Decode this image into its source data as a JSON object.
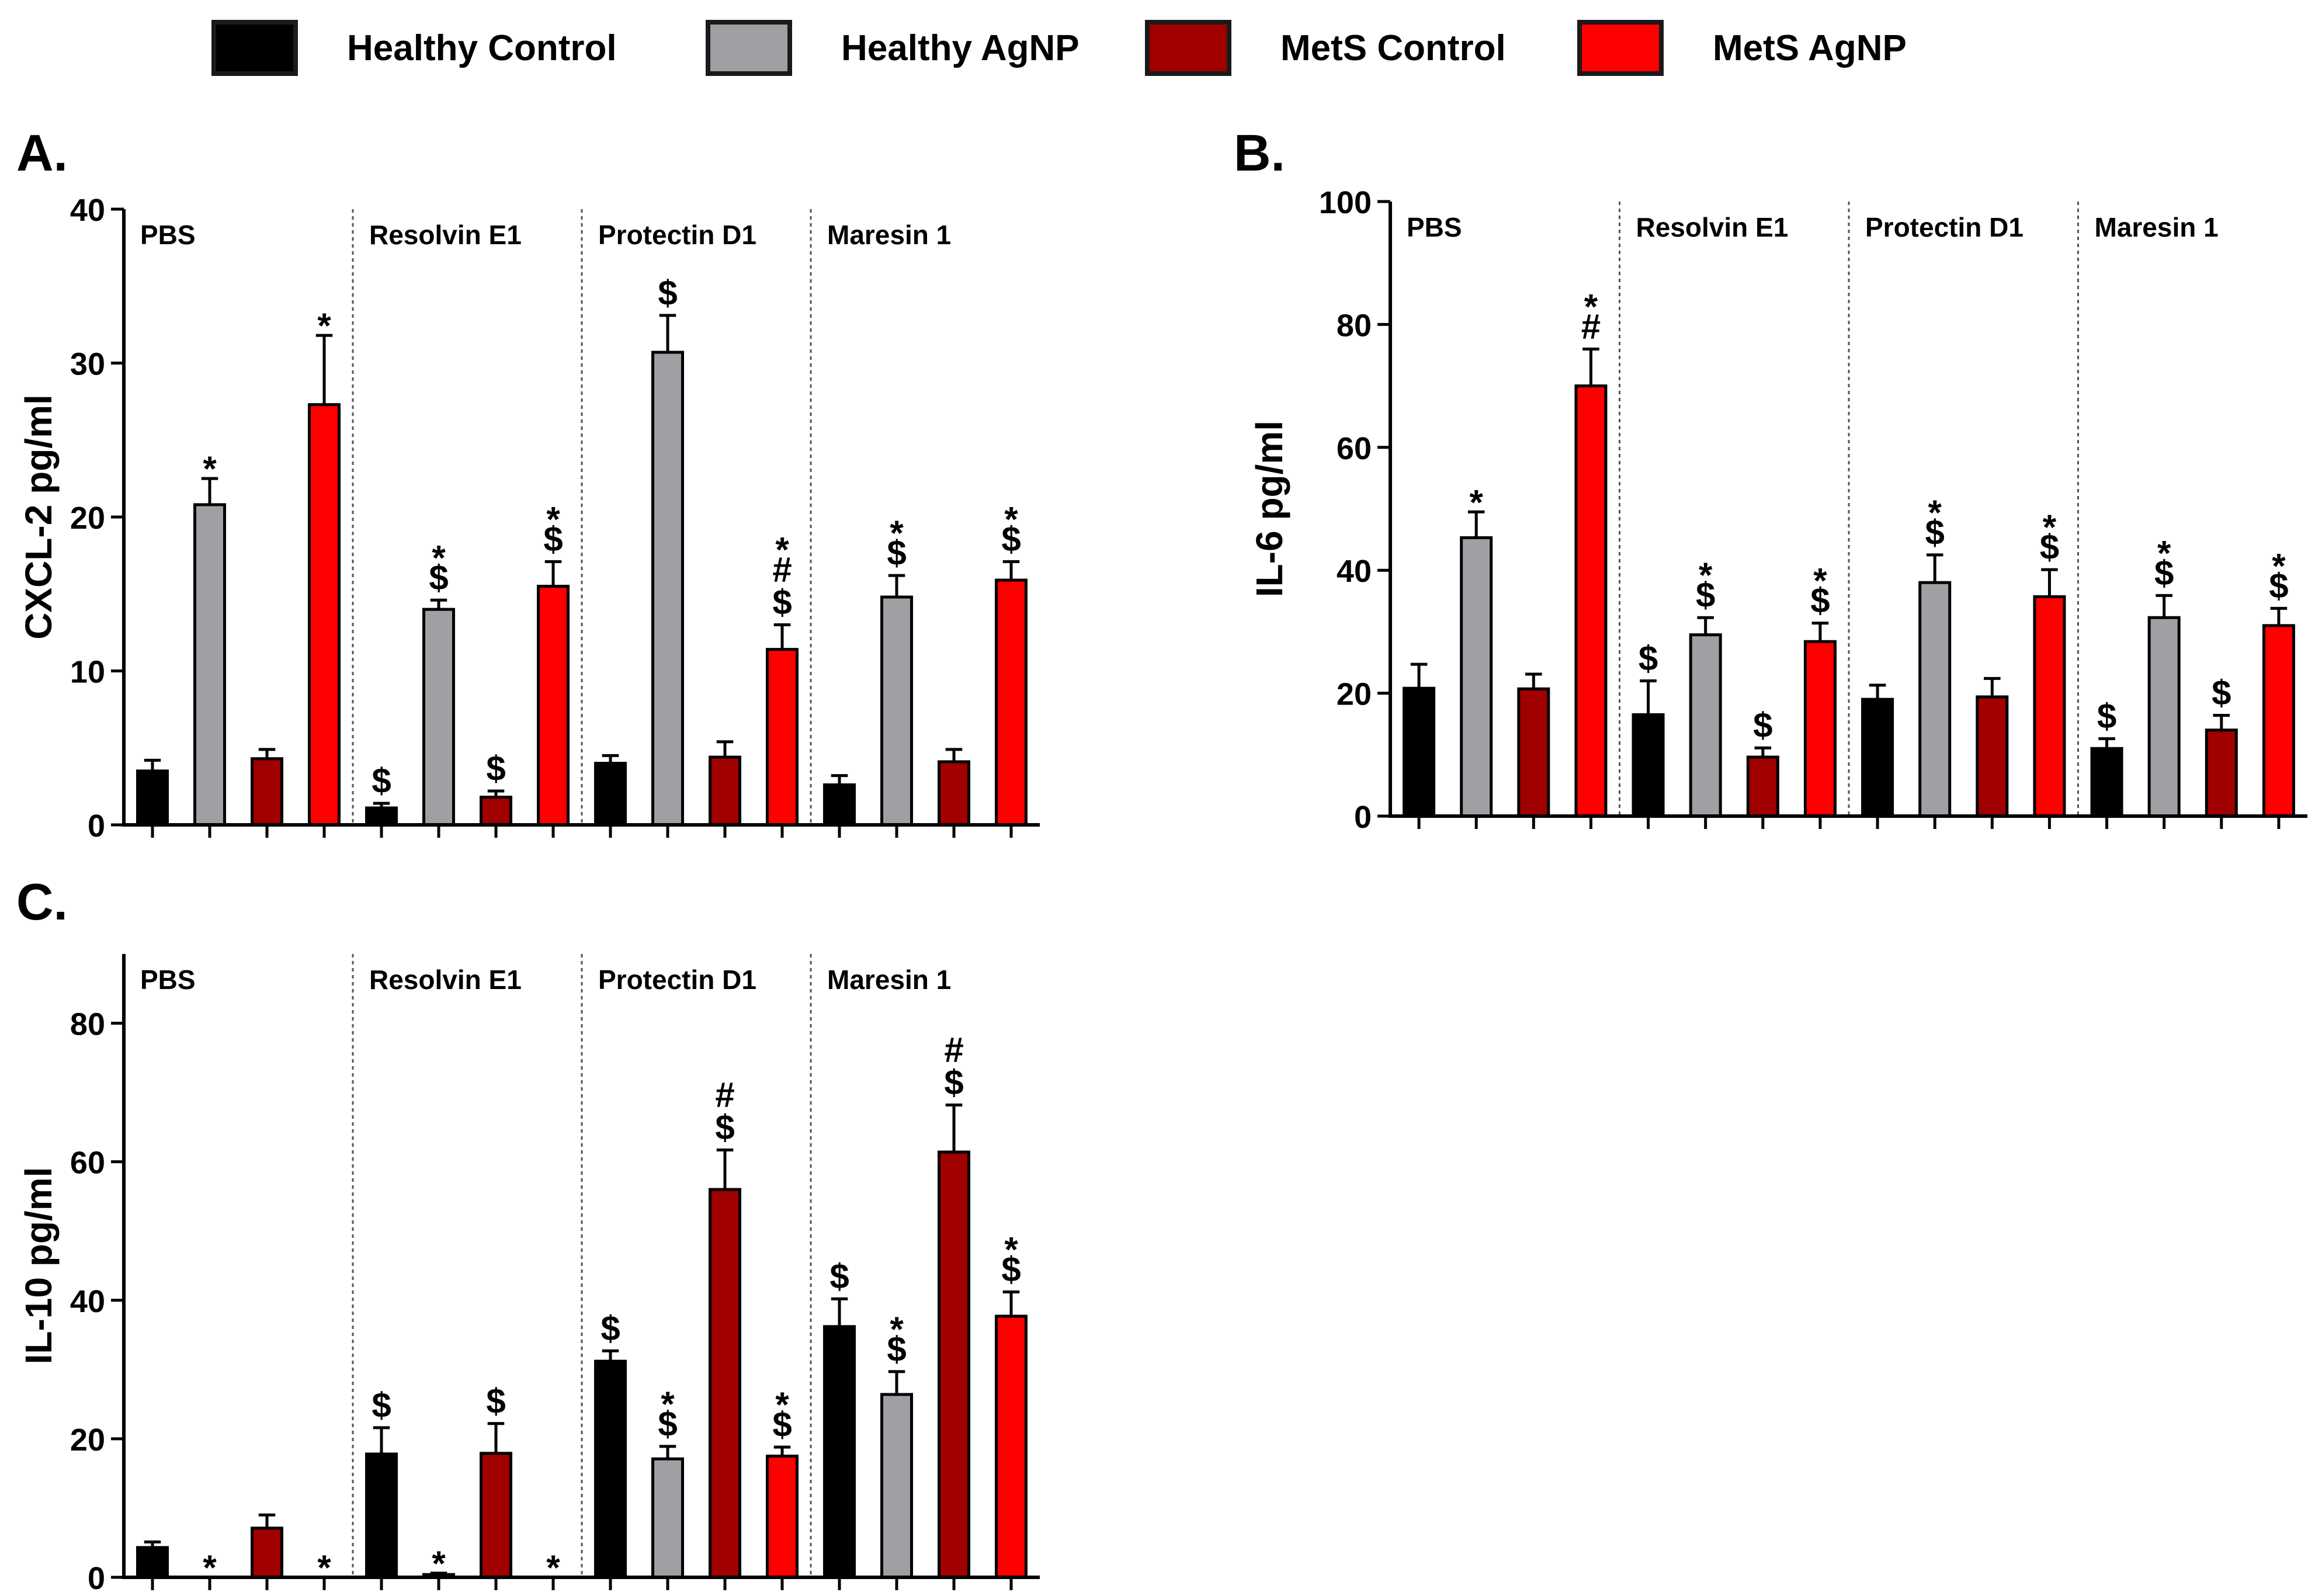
{
  "legend": [
    {
      "label": "Healthy Control",
      "color": "#000000"
    },
    {
      "label": "Healthy AgNP",
      "color": "#a0a0a4"
    },
    {
      "label": "MetS Control",
      "color": "#a00000"
    },
    {
      "label": "MetS AgNP",
      "color": "#ff0000"
    }
  ],
  "chart_data": [
    {
      "type": "bar",
      "panel": "A.",
      "ylabel": "CXCL-2 pg/ml",
      "ylim": [
        0,
        40
      ],
      "yticks": [
        0,
        10,
        20,
        30,
        40
      ],
      "categories": [
        "PBS",
        "Resolvin E1",
        "Protectin D1",
        "Maresin 1"
      ],
      "series": [
        {
          "name": "Healthy Control",
          "color": "#000000",
          "values": [
            3.5,
            1.1,
            4.0,
            2.6
          ],
          "errors": [
            0.7,
            0.3,
            0.5,
            0.6
          ]
        },
        {
          "name": "Healthy AgNP",
          "color": "#a0a0a4",
          "values": [
            20.8,
            14.0,
            30.7,
            14.8
          ],
          "errors": [
            1.7,
            0.6,
            2.4,
            1.4
          ]
        },
        {
          "name": "MetS Control",
          "color": "#a00000",
          "values": [
            4.3,
            1.8,
            4.4,
            4.1
          ],
          "errors": [
            0.6,
            0.4,
            1.0,
            0.8
          ]
        },
        {
          "name": "MetS AgNP",
          "color": "#ff0000",
          "values": [
            27.3,
            15.5,
            11.4,
            15.9
          ],
          "errors": [
            4.5,
            1.6,
            1.6,
            1.2
          ]
        }
      ],
      "annotations": [
        [
          "",
          "*",
          "",
          "*"
        ],
        [
          "$",
          "*\n$",
          "$",
          "*\n$"
        ],
        [
          "",
          "$",
          "",
          "*\n#\n$"
        ],
        [
          "",
          "*\n$",
          "",
          "*\n$"
        ]
      ]
    },
    {
      "type": "bar",
      "panel": "B.",
      "ylabel": "IL-6 pg/ml",
      "ylim": [
        0,
        100
      ],
      "yticks": [
        0,
        20,
        40,
        60,
        80,
        100
      ],
      "categories": [
        "PBS",
        "Resolvin E1",
        "Protectin D1",
        "Maresin 1"
      ],
      "series": [
        {
          "name": "Healthy Control",
          "color": "#000000",
          "values": [
            20.8,
            16.5,
            19.0,
            11.0
          ],
          "errors": [
            3.9,
            5.5,
            2.3,
            1.6
          ]
        },
        {
          "name": "Healthy AgNP",
          "color": "#a0a0a4",
          "values": [
            45.3,
            29.5,
            38.0,
            32.3
          ],
          "errors": [
            4.2,
            2.8,
            4.5,
            3.6
          ]
        },
        {
          "name": "MetS Control",
          "color": "#a00000",
          "values": [
            20.7,
            9.6,
            19.4,
            14.0
          ],
          "errors": [
            2.4,
            1.5,
            3.0,
            2.4
          ]
        },
        {
          "name": "MetS AgNP",
          "color": "#ff0000",
          "values": [
            70.0,
            28.4,
            35.7,
            31.0
          ],
          "errors": [
            6.0,
            3.0,
            4.4,
            2.8
          ]
        }
      ],
      "annotations": [
        [
          "",
          "*",
          "",
          "*\n#"
        ],
        [
          "$",
          "*\n$",
          "$",
          "*\n$"
        ],
        [
          "",
          "*\n$",
          "",
          "*\n$"
        ],
        [
          "$",
          "*\n$",
          "$",
          "*\n$"
        ]
      ]
    },
    {
      "type": "bar",
      "panel": "C.",
      "ylabel": "IL-10 pg/ml",
      "ylim": [
        0,
        90
      ],
      "yticks": [
        0,
        20,
        40,
        60,
        80
      ],
      "categories": [
        "PBS",
        "Resolvin E1",
        "Protectin D1",
        "Maresin 1"
      ],
      "series": [
        {
          "name": "Healthy Control",
          "color": "#000000",
          "values": [
            4.3,
            17.8,
            31.2,
            36.2
          ],
          "errors": [
            0.8,
            3.8,
            1.5,
            4.0
          ]
        },
        {
          "name": "Healthy AgNP",
          "color": "#a0a0a4",
          "values": [
            0.0,
            0.4,
            17.1,
            26.4
          ],
          "errors": [
            0.0,
            0.2,
            1.8,
            3.3
          ]
        },
        {
          "name": "MetS Control",
          "color": "#a00000",
          "values": [
            7.1,
            17.9,
            56.0,
            61.4
          ],
          "errors": [
            1.9,
            4.3,
            5.7,
            6.8
          ]
        },
        {
          "name": "MetS AgNP",
          "color": "#ff0000",
          "values": [
            0.0,
            0.0,
            17.5,
            37.7
          ],
          "errors": [
            0.0,
            0.0,
            1.3,
            3.5
          ]
        }
      ],
      "annotations": [
        [
          "",
          "*",
          "",
          "*"
        ],
        [
          "$",
          "*",
          "$",
          "*"
        ],
        [
          "$",
          "*\n$",
          "#\n$",
          "*\n$"
        ],
        [
          "$",
          "*\n$",
          "#\n$",
          "*\n$"
        ]
      ]
    }
  ]
}
